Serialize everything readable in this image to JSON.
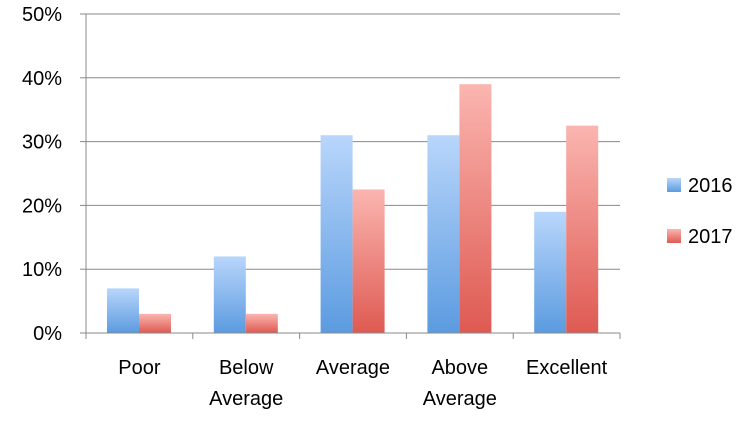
{
  "chart_data": {
    "type": "bar",
    "title": "",
    "xlabel": "",
    "ylabel": "",
    "categories": [
      [
        "Poor"
      ],
      [
        "Below",
        "Average"
      ],
      [
        "Average"
      ],
      [
        "Above",
        "Average"
      ],
      [
        "Excellent"
      ]
    ],
    "series": [
      {
        "name": "2016",
        "values": [
          7,
          12,
          31,
          31,
          19
        ],
        "color_top": "#b9d6fb",
        "color_bottom": "#5b9be0"
      },
      {
        "name": "2017",
        "values": [
          3,
          3,
          22.5,
          39,
          32.5
        ],
        "color_top": "#fbb5b0",
        "color_bottom": "#de5a52"
      }
    ],
    "ylim": [
      0,
      50
    ],
    "yticks": [
      0,
      10,
      20,
      30,
      40,
      50
    ],
    "ytick_labels": [
      "0%",
      "10%",
      "20%",
      "30%",
      "40%",
      "50%"
    ],
    "grid": true,
    "legend_position": "right"
  }
}
